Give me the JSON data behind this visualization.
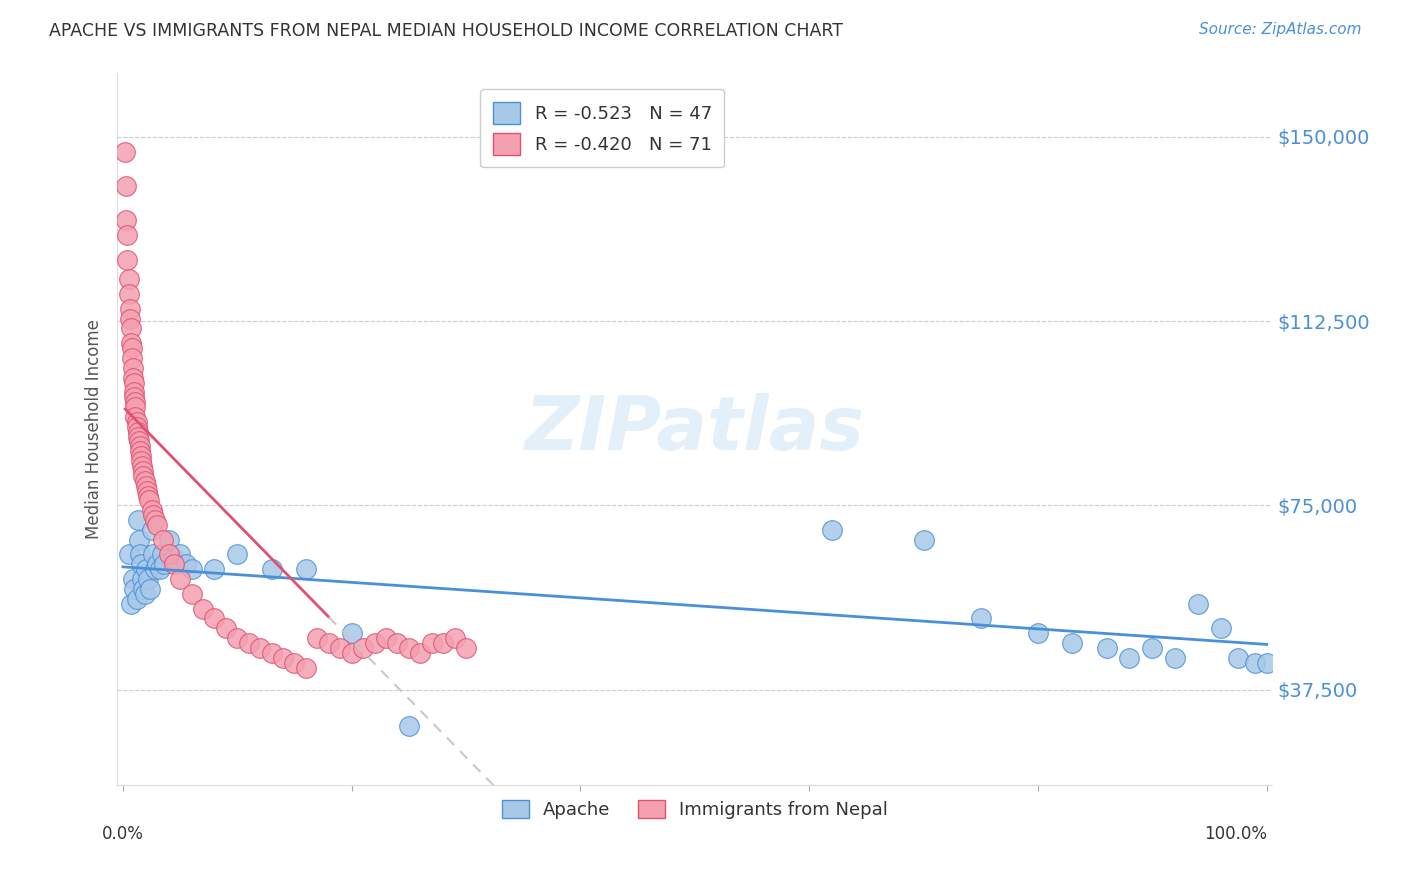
{
  "title": "APACHE VS IMMIGRANTS FROM NEPAL MEDIAN HOUSEHOLD INCOME CORRELATION CHART",
  "source": "Source: ZipAtlas.com",
  "ylabel": "Median Household Income",
  "ytick_labels": [
    "$37,500",
    "$75,000",
    "$112,500",
    "$150,000"
  ],
  "ytick_values": [
    37500,
    75000,
    112500,
    150000
  ],
  "ymin": 18000,
  "ymax": 163000,
  "xmin": -0.005,
  "xmax": 1.005,
  "legend_apache_R": "-0.523",
  "legend_apache_N": "47",
  "legend_nepal_R": "-0.420",
  "legend_nepal_N": "71",
  "color_apache": "#a8c8e8",
  "color_nepal": "#f4a0b0",
  "color_trendline_apache": "#4a90d9",
  "color_trendline_nepal": "#e05070",
  "color_trendline_nepal_ext": "#c8c8c8",
  "title_color": "#333333",
  "source_color": "#4a90d9",
  "ytick_color": "#4a90d9",
  "apache_x": [
    0.005,
    0.007,
    0.009,
    0.01,
    0.012,
    0.013,
    0.014,
    0.015,
    0.016,
    0.017,
    0.018,
    0.019,
    0.02,
    0.022,
    0.024,
    0.025,
    0.026,
    0.028,
    0.03,
    0.032,
    0.034,
    0.036,
    0.04,
    0.045,
    0.05,
    0.055,
    0.06,
    0.08,
    0.1,
    0.13,
    0.16,
    0.2,
    0.25,
    0.62,
    0.7,
    0.75,
    0.8,
    0.83,
    0.86,
    0.88,
    0.9,
    0.92,
    0.94,
    0.96,
    0.975,
    0.99,
    1.0
  ],
  "apache_y": [
    65000,
    55000,
    60000,
    58000,
    56000,
    72000,
    68000,
    65000,
    63000,
    60000,
    58000,
    57000,
    62000,
    60000,
    58000,
    70000,
    65000,
    62000,
    63000,
    62000,
    65000,
    63000,
    68000,
    64000,
    65000,
    63000,
    62000,
    62000,
    65000,
    62000,
    62000,
    49000,
    30000,
    70000,
    68000,
    52000,
    49000,
    47000,
    46000,
    44000,
    46000,
    44000,
    55000,
    50000,
    44000,
    43000,
    43000
  ],
  "nepal_x": [
    0.002,
    0.003,
    0.003,
    0.004,
    0.004,
    0.005,
    0.005,
    0.006,
    0.006,
    0.007,
    0.007,
    0.008,
    0.008,
    0.009,
    0.009,
    0.01,
    0.01,
    0.01,
    0.011,
    0.011,
    0.011,
    0.012,
    0.012,
    0.013,
    0.013,
    0.014,
    0.015,
    0.015,
    0.016,
    0.016,
    0.017,
    0.018,
    0.018,
    0.019,
    0.02,
    0.021,
    0.022,
    0.023,
    0.025,
    0.026,
    0.028,
    0.03,
    0.035,
    0.04,
    0.045,
    0.05,
    0.06,
    0.07,
    0.08,
    0.09,
    0.1,
    0.11,
    0.12,
    0.13,
    0.14,
    0.15,
    0.16,
    0.17,
    0.18,
    0.19,
    0.2,
    0.21,
    0.22,
    0.23,
    0.24,
    0.25,
    0.26,
    0.27,
    0.28,
    0.29,
    0.3
  ],
  "nepal_y": [
    147000,
    133000,
    140000,
    125000,
    130000,
    121000,
    118000,
    115000,
    113000,
    111000,
    108000,
    107000,
    105000,
    103000,
    101000,
    100000,
    98000,
    97000,
    96000,
    95000,
    93000,
    92000,
    91000,
    90000,
    89000,
    88000,
    87000,
    86000,
    85000,
    84000,
    83000,
    82000,
    81000,
    80000,
    79000,
    78000,
    77000,
    76000,
    74000,
    73000,
    72000,
    71000,
    68000,
    65000,
    63000,
    60000,
    57000,
    54000,
    52000,
    50000,
    48000,
    47000,
    46000,
    45000,
    44000,
    43000,
    42000,
    48000,
    47000,
    46000,
    45000,
    46000,
    47000,
    48000,
    47000,
    46000,
    45000,
    47000,
    47000,
    48000,
    46000
  ],
  "trendline_apache_x0": 0.0,
  "trendline_apache_x1": 1.0,
  "trendline_nepal_solid_x0": 0.002,
  "trendline_nepal_solid_x1": 0.18,
  "trendline_nepal_dash_x0": 0.18,
  "trendline_nepal_dash_x1": 0.4
}
